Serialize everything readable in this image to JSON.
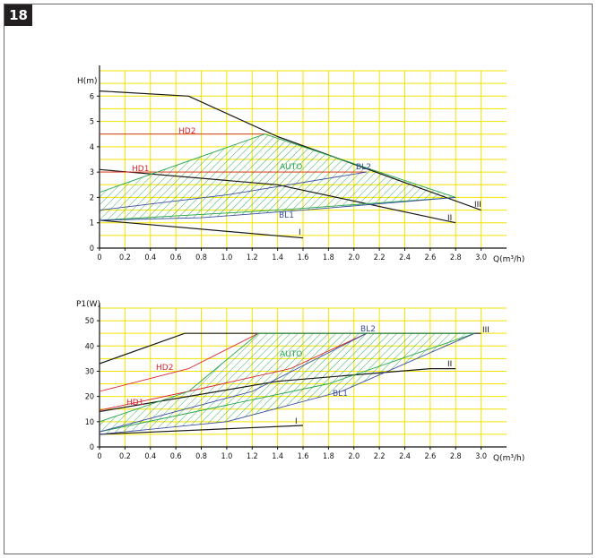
{
  "figure": {
    "number": "18"
  },
  "colors": {
    "grid": "#f2e200",
    "black": "#1a1a1a",
    "red": "#d8242c",
    "green": "#2aa64a",
    "blue": "#3c4fa0"
  },
  "chart_data": [
    {
      "type": "line",
      "ylabel": "H(m)",
      "xlabel": "Q(m³/h)",
      "xlim": [
        0,
        3.2
      ],
      "ylim": [
        0,
        7
      ],
      "xticks": [
        "0",
        "0.2",
        "0.4",
        "0.6",
        "0.8",
        "1.0",
        "1.2",
        "1.4",
        "1.6",
        "1.8",
        "2.0",
        "2.2",
        "2.4",
        "2.6",
        "2.8",
        "3.0"
      ],
      "yticks": [
        "0",
        "1",
        "2",
        "3",
        "4",
        "5",
        "6"
      ],
      "grid": true,
      "series": [
        {
          "name": "I",
          "color": "black",
          "points": [
            [
              0,
              1.1
            ],
            [
              1.6,
              0.4
            ]
          ]
        },
        {
          "name": "II",
          "color": "black",
          "points": [
            [
              0,
              3.1
            ],
            [
              1.4,
              2.5
            ],
            [
              2.8,
              1.0
            ]
          ]
        },
        {
          "name": "III",
          "color": "black",
          "points": [
            [
              0,
              6.2
            ],
            [
              0.7,
              6.0
            ],
            [
              1.4,
              4.4
            ],
            [
              3.0,
              1.5
            ]
          ]
        },
        {
          "name": "HD1",
          "color": "red",
          "points": [
            [
              0,
              3.0
            ],
            [
              2.1,
              3.0
            ]
          ]
        },
        {
          "name": "HD2",
          "color": "red",
          "points": [
            [
              0,
              4.5
            ],
            [
              1.3,
              4.5
            ]
          ]
        },
        {
          "name": "AUTO",
          "color": "green",
          "points": [
            [
              0,
              2.2
            ],
            [
              1.3,
              4.5
            ],
            [
              2.8,
              2.0
            ],
            [
              1.4,
              1.5
            ],
            [
              0,
              1.1
            ]
          ]
        },
        {
          "name": "BL1",
          "color": "blue",
          "points": [
            [
              0,
              1.1
            ],
            [
              0.8,
              1.2
            ],
            [
              1.6,
              1.5
            ],
            [
              2.8,
              2.0
            ]
          ]
        },
        {
          "name": "BL2",
          "color": "blue",
          "points": [
            [
              0,
              1.5
            ],
            [
              1.0,
              2.1
            ],
            [
              2.1,
              3.0
            ]
          ]
        }
      ],
      "hatched_area": [
        [
          0,
          2.2
        ],
        [
          1.3,
          4.5
        ],
        [
          2.8,
          2.0
        ],
        [
          1.6,
          1.5
        ],
        [
          0.8,
          1.2
        ],
        [
          0,
          1.1
        ]
      ]
    },
    {
      "type": "line",
      "ylabel": "P1(W)",
      "xlabel": "Q(m³/h)",
      "xlim": [
        0,
        3.2
      ],
      "ylim": [
        0,
        55
      ],
      "xticks": [
        "0",
        "0.2",
        "0.4",
        "0.6",
        "0.8",
        "1.0",
        "1.2",
        "1.4",
        "1.6",
        "1.8",
        "2.0",
        "2.2",
        "2.4",
        "2.6",
        "2.8",
        "3.0"
      ],
      "yticks": [
        "0",
        "10",
        "20",
        "30",
        "40",
        "50"
      ],
      "grid": true,
      "series": [
        {
          "name": "I",
          "color": "black",
          "points": [
            [
              0,
              5
            ],
            [
              1.6,
              8.5
            ]
          ]
        },
        {
          "name": "II",
          "color": "black",
          "points": [
            [
              0,
              14
            ],
            [
              1.4,
              26
            ],
            [
              2.6,
              31
            ],
            [
              2.8,
              31
            ]
          ]
        },
        {
          "name": "III",
          "color": "black",
          "points": [
            [
              0,
              33
            ],
            [
              0.67,
              45
            ],
            [
              3.0,
              45
            ]
          ]
        },
        {
          "name": "HD1",
          "color": "red",
          "points": [
            [
              0,
              14.5
            ],
            [
              0.7,
              22
            ],
            [
              1.5,
              31
            ],
            [
              2.1,
              45
            ]
          ]
        },
        {
          "name": "HD2",
          "color": "red",
          "points": [
            [
              0,
              22
            ],
            [
              0.7,
              31
            ],
            [
              1.25,
              45
            ]
          ]
        },
        {
          "name": "AUTO",
          "color": "green",
          "points": [
            [
              0,
              10
            ],
            [
              0.7,
              22
            ],
            [
              1.25,
              45
            ],
            [
              2.95,
              45
            ],
            [
              1.8,
              25
            ],
            [
              0,
              6
            ]
          ]
        },
        {
          "name": "BL1",
          "color": "blue",
          "points": [
            [
              0,
              5
            ],
            [
              1.0,
              10
            ],
            [
              1.9,
              22
            ],
            [
              2.95,
              45
            ]
          ]
        },
        {
          "name": "BL2",
          "color": "blue",
          "points": [
            [
              0,
              6
            ],
            [
              1.2,
              22
            ],
            [
              2.1,
              45
            ]
          ]
        }
      ],
      "hatched_area": [
        [
          0,
          10
        ],
        [
          0.7,
          22
        ],
        [
          1.25,
          45
        ],
        [
          2.95,
          45
        ],
        [
          1.9,
          22
        ],
        [
          1.0,
          10
        ],
        [
          0,
          5
        ]
      ]
    }
  ],
  "labels": {
    "top": {
      "HD2": "HD2",
      "HD1": "HD1",
      "AUTO": "AUTO",
      "BL2": "BL2",
      "BL1": "BL1",
      "I": "I",
      "II": "II",
      "III": "III"
    },
    "bottom": {
      "HD2": "HD2",
      "HD1": "HD1",
      "AUTO": "AUTO",
      "BL2": "BL2",
      "BL1": "BL1",
      "I": "I",
      "II": "II",
      "III": "III"
    }
  }
}
